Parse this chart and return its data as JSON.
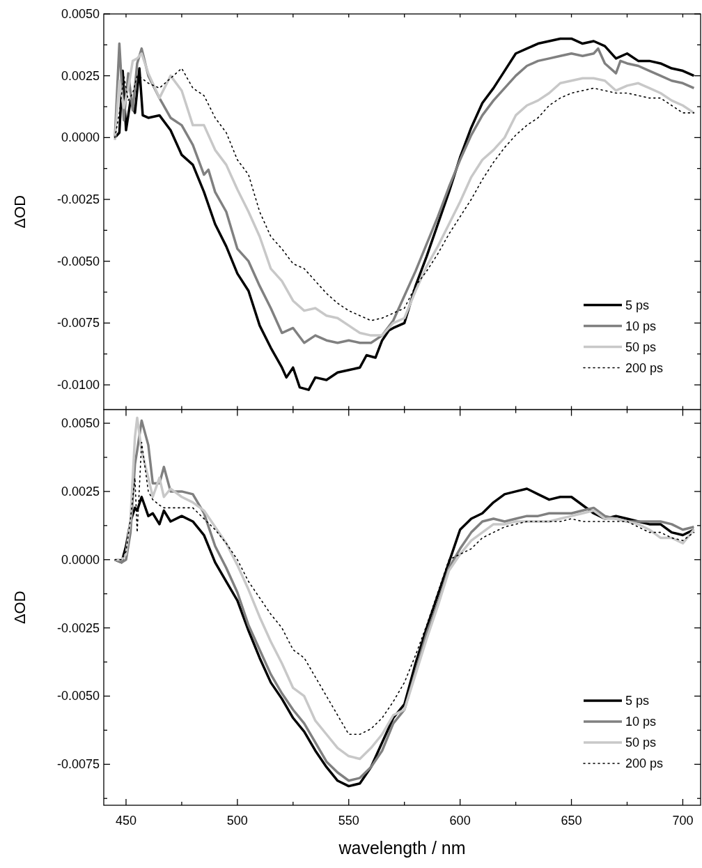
{
  "chart_data": [
    {
      "type": "line",
      "ylabel": "ΔOD",
      "xlim": [
        440,
        708
      ],
      "ylim": [
        -0.011,
        0.005
      ],
      "xticks": [
        {
          "value": 450,
          "label": null
        },
        {
          "value": 475,
          "label": null
        },
        {
          "value": 500,
          "label": null
        },
        {
          "value": 525,
          "label": null
        },
        {
          "value": 550,
          "label": null
        },
        {
          "value": 575,
          "label": null
        },
        {
          "value": 600,
          "label": null
        },
        {
          "value": 625,
          "label": null
        },
        {
          "value": 650,
          "label": null
        },
        {
          "value": 675,
          "label": null
        },
        {
          "value": 700,
          "label": null
        }
      ],
      "yticks": [
        {
          "value": 0.005,
          "label": "0.0050"
        },
        {
          "value": 0.00375,
          "label": null
        },
        {
          "value": 0.0025,
          "label": "0.0025"
        },
        {
          "value": 0.00125,
          "label": null
        },
        {
          "value": 0,
          "label": "0.0000"
        },
        {
          "value": -0.00125,
          "label": null
        },
        {
          "value": -0.0025,
          "label": "-0.0025"
        },
        {
          "value": -0.00375,
          "label": null
        },
        {
          "value": -0.005,
          "label": "-0.0050"
        },
        {
          "value": -0.00625,
          "label": null
        },
        {
          "value": -0.0075,
          "label": "-0.0075"
        },
        {
          "value": -0.00875,
          "label": null
        },
        {
          "value": -0.01,
          "label": "-0.0100"
        }
      ],
      "tick_labels": "y",
      "legend": "bottom right",
      "grid": false,
      "line_style": "solid",
      "marker": "none",
      "series": [
        {
          "name": "5 ps",
          "color": "#000000",
          "x": [
            445,
            447,
            448.5,
            450,
            452,
            454,
            456,
            457.5,
            460,
            465,
            470,
            475,
            480,
            485,
            490,
            495,
            500,
            505,
            510,
            515,
            520,
            522,
            525,
            528,
            532,
            535,
            540,
            545,
            550,
            555,
            558,
            562,
            565,
            568,
            570,
            575,
            580,
            585,
            590,
            595,
            600,
            605,
            610,
            615,
            620,
            625,
            630,
            635,
            640,
            645,
            650,
            655,
            660,
            665,
            670,
            675,
            680,
            685,
            690,
            695,
            700,
            705
          ],
          "values": [
            0,
            0.0002,
            0.0027,
            0.0003,
            0.0015,
            0.001,
            0.0028,
            0.0009,
            0.0008,
            0.0009,
            0.0003,
            -0.0007,
            -0.0011,
            -0.0022,
            -0.0035,
            -0.0044,
            -0.0055,
            -0.0062,
            -0.0076,
            -0.0085,
            -0.0093,
            -0.0097,
            -0.0093,
            -0.0101,
            -0.0102,
            -0.0097,
            -0.0098,
            -0.0095,
            -0.0094,
            -0.0093,
            -0.0088,
            -0.0089,
            -0.0082,
            -0.0078,
            -0.0077,
            -0.0075,
            -0.006,
            -0.0048,
            -0.0035,
            -0.0022,
            -0.0008,
            0.0004,
            0.0014,
            0.002,
            0.0027,
            0.0034,
            0.0036,
            0.0038,
            0.0039,
            0.004,
            0.004,
            0.0038,
            0.0039,
            0.0037,
            0.0032,
            0.0034,
            0.0031,
            0.0031,
            0.003,
            0.0028,
            0.0027,
            0.0025
          ]
        },
        {
          "name": "10 ps",
          "color": "#808080",
          "x": [
            445,
            447,
            449,
            451,
            453,
            455,
            457,
            460,
            465,
            470,
            475,
            480,
            485,
            487,
            490,
            495,
            500,
            505,
            510,
            515,
            520,
            525,
            530,
            535,
            540,
            545,
            550,
            555,
            560,
            565,
            570,
            575,
            580,
            585,
            590,
            595,
            600,
            605,
            610,
            615,
            620,
            625,
            630,
            635,
            640,
            645,
            650,
            655,
            660,
            662,
            665,
            670,
            672,
            675,
            680,
            685,
            690,
            695,
            700,
            705
          ],
          "values": [
            0,
            0.0038,
            0.0007,
            0.0026,
            0.0011,
            0.003,
            0.0036,
            0.0025,
            0.0016,
            0.0008,
            0.0005,
            -0.0003,
            -0.0015,
            -0.0013,
            -0.0022,
            -0.003,
            -0.0045,
            -0.005,
            -0.006,
            -0.0069,
            -0.0079,
            -0.0077,
            -0.0083,
            -0.008,
            -0.0082,
            -0.0083,
            -0.0082,
            -0.0083,
            -0.0083,
            -0.008,
            -0.0074,
            -0.0064,
            -0.0054,
            -0.0043,
            -0.0032,
            -0.002,
            -0.0009,
            0.0001,
            0.0009,
            0.0015,
            0.002,
            0.0025,
            0.0029,
            0.0031,
            0.0032,
            0.0033,
            0.0034,
            0.0033,
            0.0034,
            0.0036,
            0.003,
            0.0026,
            0.0031,
            0.003,
            0.0029,
            0.0027,
            0.0025,
            0.0023,
            0.0022,
            0.002
          ]
        },
        {
          "name": "50 ps",
          "color": "#c8c8c8",
          "x": [
            445,
            447,
            449,
            451,
            453,
            455,
            457,
            460,
            465,
            470,
            475,
            480,
            485,
            490,
            495,
            500,
            505,
            510,
            515,
            520,
            525,
            530,
            535,
            540,
            545,
            550,
            555,
            560,
            565,
            570,
            575,
            580,
            585,
            590,
            595,
            600,
            605,
            610,
            615,
            620,
            625,
            630,
            635,
            640,
            645,
            650,
            655,
            660,
            665,
            670,
            675,
            680,
            685,
            690,
            695,
            700,
            705
          ],
          "values": [
            -0.0001,
            0.0023,
            0.0012,
            0.002,
            0.0031,
            0.0032,
            0.0034,
            0.0026,
            0.0016,
            0.0025,
            0.0019,
            0.0005,
            0.0005,
            -0.0005,
            -0.0011,
            -0.0021,
            -0.003,
            -0.004,
            -0.0053,
            -0.0058,
            -0.0066,
            -0.007,
            -0.0069,
            -0.0072,
            -0.0073,
            -0.0076,
            -0.0079,
            -0.008,
            -0.008,
            -0.0075,
            -0.0073,
            -0.0062,
            -0.0052,
            -0.0044,
            -0.0035,
            -0.0026,
            -0.0016,
            -0.0009,
            -0.0005,
            0,
            0.0009,
            0.0013,
            0.0015,
            0.0018,
            0.0022,
            0.0023,
            0.0024,
            0.0024,
            0.0023,
            0.0019,
            0.0021,
            0.0022,
            0.002,
            0.0018,
            0.0015,
            0.0013,
            0.001
          ]
        },
        {
          "name": "200 ps",
          "color": "#000000",
          "line_style": "dotted",
          "x": [
            445,
            447,
            449,
            451,
            453,
            455,
            457,
            460,
            465,
            470,
            475,
            480,
            485,
            490,
            495,
            500,
            505,
            510,
            515,
            520,
            525,
            530,
            535,
            540,
            545,
            550,
            555,
            560,
            565,
            570,
            575,
            580,
            585,
            590,
            595,
            600,
            605,
            610,
            615,
            620,
            625,
            630,
            635,
            640,
            645,
            650,
            655,
            660,
            665,
            670,
            675,
            680,
            685,
            690,
            695,
            700,
            705
          ],
          "values": [
            0,
            0.001,
            0.0025,
            0.0015,
            0.0018,
            0.0025,
            0.0024,
            0.0022,
            0.002,
            0.0024,
            0.0028,
            0.002,
            0.0017,
            0.0008,
            0.0002,
            -0.0009,
            -0.0015,
            -0.003,
            -0.004,
            -0.0045,
            -0.0051,
            -0.0053,
            -0.0058,
            -0.0063,
            -0.0067,
            -0.007,
            -0.0072,
            -0.0074,
            -0.0073,
            -0.0071,
            -0.0069,
            -0.006,
            -0.0054,
            -0.0047,
            -0.0039,
            -0.0032,
            -0.0025,
            -0.0017,
            -0.001,
            -0.0004,
            0.0001,
            0.0005,
            0.0008,
            0.0013,
            0.0016,
            0.0018,
            0.0019,
            0.002,
            0.0019,
            0.0018,
            0.0018,
            0.0017,
            0.0016,
            0.0016,
            0.0013,
            0.001,
            0.001
          ]
        }
      ]
    },
    {
      "type": "line",
      "ylabel": "ΔOD",
      "xlabel": "wavelength / nm",
      "xlim": [
        440,
        708
      ],
      "ylim": [
        -0.009,
        0.0055
      ],
      "xticks": [
        {
          "value": 450,
          "label": "450"
        },
        {
          "value": 475,
          "label": null
        },
        {
          "value": 500,
          "label": "500"
        },
        {
          "value": 525,
          "label": null
        },
        {
          "value": 550,
          "label": "550"
        },
        {
          "value": 575,
          "label": null
        },
        {
          "value": 600,
          "label": "600"
        },
        {
          "value": 625,
          "label": null
        },
        {
          "value": 650,
          "label": "650"
        },
        {
          "value": 675,
          "label": null
        },
        {
          "value": 700,
          "label": "700"
        }
      ],
      "yticks": [
        {
          "value": 0.005,
          "label": "0.0050"
        },
        {
          "value": 0.00375,
          "label": null
        },
        {
          "value": 0.0025,
          "label": "0.0025"
        },
        {
          "value": 0.00125,
          "label": null
        },
        {
          "value": 0,
          "label": "0.0000"
        },
        {
          "value": -0.00125,
          "label": null
        },
        {
          "value": -0.0025,
          "label": "-0.0025"
        },
        {
          "value": -0.00375,
          "label": null
        },
        {
          "value": -0.005,
          "label": "-0.0050"
        },
        {
          "value": -0.00625,
          "label": null
        },
        {
          "value": -0.0075,
          "label": "-0.0075"
        },
        {
          "value": -0.00875,
          "label": null
        }
      ],
      "legend": "bottom right",
      "grid": false,
      "line_style": "solid",
      "marker": "none",
      "series": [
        {
          "name": "5 ps",
          "color": "#000000",
          "x": [
            445,
            448,
            450,
            452,
            454,
            455,
            457,
            460,
            462,
            465,
            467,
            470,
            475,
            480,
            485,
            490,
            495,
            500,
            505,
            510,
            515,
            520,
            525,
            530,
            535,
            540,
            545,
            550,
            555,
            560,
            565,
            570,
            575,
            580,
            585,
            590,
            595,
            600,
            605,
            610,
            615,
            620,
            625,
            630,
            635,
            640,
            645,
            650,
            655,
            660,
            665,
            670,
            675,
            680,
            685,
            690,
            695,
            700,
            705
          ],
          "values": [
            0,
            -0.0001,
            0.0005,
            0.0014,
            0.0019,
            0.0018,
            0.0023,
            0.0016,
            0.0017,
            0.0013,
            0.0018,
            0.0014,
            0.0016,
            0.0014,
            0.0009,
            -0.0001,
            -0.0008,
            -0.0015,
            -0.0026,
            -0.0036,
            -0.0045,
            -0.0051,
            -0.0058,
            -0.0063,
            -0.007,
            -0.0076,
            -0.0081,
            -0.0083,
            -0.0082,
            -0.0076,
            -0.0067,
            -0.0058,
            -0.0053,
            -0.0038,
            -0.0025,
            -0.0013,
            -0.0001,
            0.0011,
            0.0015,
            0.0017,
            0.0021,
            0.0024,
            0.0025,
            0.0026,
            0.0024,
            0.0022,
            0.0023,
            0.0023,
            0.002,
            0.0017,
            0.0015,
            0.0016,
            0.0015,
            0.0014,
            0.0013,
            0.0013,
            0.001,
            0.0009,
            0.0011
          ]
        },
        {
          "name": "10 ps",
          "color": "#808080",
          "x": [
            445,
            448,
            450,
            452,
            454,
            455,
            457,
            460,
            462,
            465,
            467,
            470,
            475,
            480,
            485,
            490,
            495,
            500,
            505,
            510,
            515,
            520,
            525,
            530,
            535,
            540,
            545,
            550,
            555,
            560,
            565,
            570,
            575,
            580,
            585,
            590,
            595,
            600,
            605,
            610,
            615,
            620,
            625,
            630,
            635,
            640,
            645,
            650,
            655,
            660,
            665,
            670,
            675,
            680,
            685,
            690,
            695,
            700,
            705
          ],
          "values": [
            0,
            -0.0001,
            0,
            0.001,
            0.0035,
            0.004,
            0.0051,
            0.0042,
            0.0028,
            0.0028,
            0.0034,
            0.0025,
            0.0025,
            0.0024,
            0.0017,
            0.0005,
            -0.0003,
            -0.0012,
            -0.0024,
            -0.0033,
            -0.0042,
            -0.0049,
            -0.0055,
            -0.006,
            -0.0067,
            -0.0074,
            -0.0078,
            -0.0081,
            -0.008,
            -0.0076,
            -0.007,
            -0.006,
            -0.0055,
            -0.0041,
            -0.0027,
            -0.0016,
            -0.0003,
            0.0004,
            0.001,
            0.0014,
            0.0015,
            0.0014,
            0.0015,
            0.0016,
            0.0016,
            0.0017,
            0.0017,
            0.0017,
            0.0018,
            0.0019,
            0.0016,
            0.0015,
            0.0014,
            0.0014,
            0.0014,
            0.0014,
            0.0013,
            0.0011,
            0.0012
          ]
        },
        {
          "name": "50 ps",
          "color": "#c8c8c8",
          "x": [
            445,
            448,
            450,
            452,
            454,
            455,
            457,
            460,
            462,
            465,
            467,
            470,
            475,
            480,
            485,
            490,
            495,
            500,
            505,
            510,
            515,
            520,
            525,
            530,
            535,
            540,
            545,
            550,
            555,
            560,
            565,
            570,
            575,
            580,
            585,
            590,
            595,
            600,
            605,
            610,
            615,
            620,
            625,
            630,
            635,
            640,
            645,
            650,
            655,
            660,
            665,
            670,
            675,
            680,
            685,
            690,
            695,
            700,
            705
          ],
          "values": [
            0,
            0,
            0.0002,
            0.0015,
            0.0045,
            0.0052,
            0.004,
            0.003,
            0.0023,
            0.003,
            0.0023,
            0.0026,
            0.0023,
            0.0021,
            0.0018,
            0.0012,
            0.0006,
            -0.0002,
            -0.0011,
            -0.0021,
            -0.003,
            -0.0038,
            -0.0047,
            -0.005,
            -0.0059,
            -0.0064,
            -0.0069,
            -0.0072,
            -0.0073,
            -0.0069,
            -0.0064,
            -0.0057,
            -0.0055,
            -0.0042,
            -0.0029,
            -0.0017,
            -0.0004,
            0.0002,
            0.0007,
            0.001,
            0.0013,
            0.0013,
            0.0014,
            0.0014,
            0.0014,
            0.0014,
            0.0015,
            0.0016,
            0.0017,
            0.0018,
            0.0015,
            0.0015,
            0.0014,
            0.0013,
            0.0011,
            0.0008,
            0.0008,
            0.0006,
            0.0011
          ]
        },
        {
          "name": "200 ps",
          "color": "#000000",
          "line_style": "dotted",
          "x": [
            445,
            448,
            450,
            452,
            454,
            455,
            457,
            460,
            462,
            465,
            467,
            470,
            475,
            480,
            485,
            490,
            495,
            500,
            505,
            510,
            515,
            520,
            525,
            530,
            535,
            540,
            545,
            550,
            555,
            560,
            565,
            570,
            575,
            580,
            585,
            590,
            595,
            600,
            605,
            610,
            615,
            620,
            625,
            630,
            635,
            640,
            645,
            650,
            655,
            660,
            665,
            670,
            675,
            680,
            685,
            690,
            695,
            700,
            705
          ],
          "values": [
            0,
            0,
            0.0003,
            0.0015,
            0.003,
            0.001,
            0.0043,
            0.0025,
            0.0022,
            0.002,
            0.0019,
            0.0019,
            0.0019,
            0.0019,
            0.0015,
            0.0011,
            0.0006,
            0,
            -0.0008,
            -0.0014,
            -0.002,
            -0.0025,
            -0.0033,
            -0.0036,
            -0.0043,
            -0.005,
            -0.0057,
            -0.0064,
            -0.0064,
            -0.0062,
            -0.0058,
            -0.0052,
            -0.0045,
            -0.0035,
            -0.0024,
            -0.0012,
            0,
            0.0002,
            0.0004,
            0.0008,
            0.001,
            0.0012,
            0.0013,
            0.0014,
            0.0014,
            0.0014,
            0.0014,
            0.0015,
            0.0014,
            0.0014,
            0.0014,
            0.0014,
            0.0014,
            0.0012,
            0.001,
            0.001,
            0.0008,
            0.0007,
            0.001
          ]
        }
      ]
    }
  ]
}
